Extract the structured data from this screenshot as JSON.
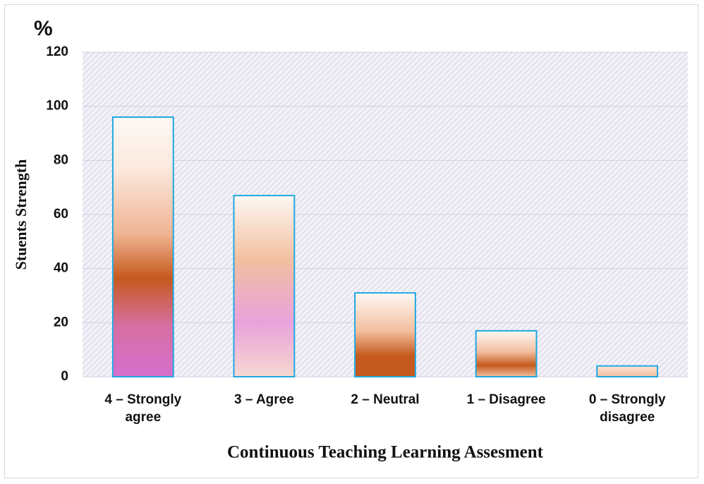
{
  "chart_data": {
    "type": "bar",
    "y_unit": "%",
    "ylabel": "Stuents Strength",
    "xlabel": "Continuous Teaching Learning Assesment",
    "categories": [
      "4 – Strongly agree",
      "3 – Agree",
      "2 – Neutral",
      "1 – Disagree",
      "0 – Strongly disagree"
    ],
    "values": [
      96,
      67,
      31,
      17,
      4
    ],
    "color": "#1fa8e0",
    "ylim": [
      0,
      120
    ],
    "yticks": [
      0,
      20,
      40,
      60,
      80,
      100,
      120
    ],
    "grid": true
  }
}
